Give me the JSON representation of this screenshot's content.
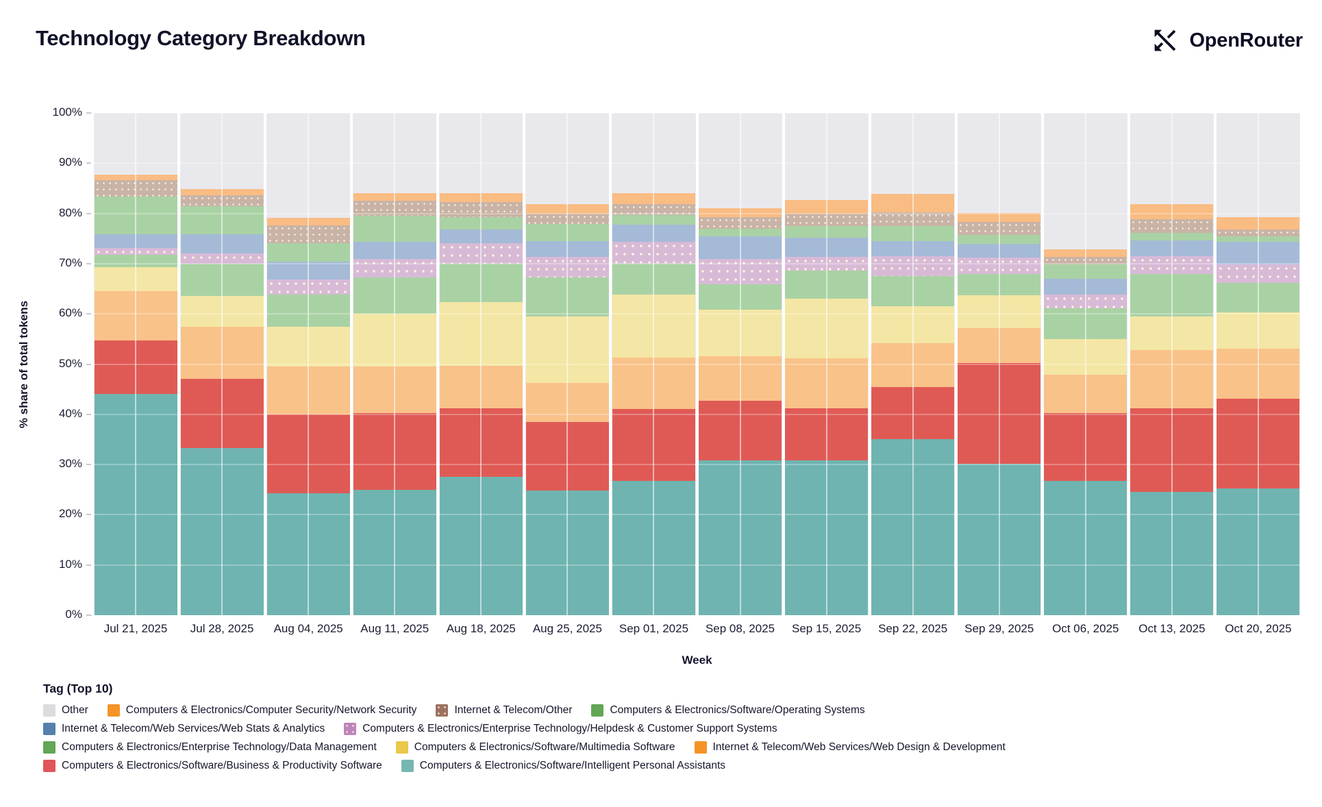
{
  "header": {
    "title": "Technology Category Breakdown",
    "logo_text": "OpenRouter"
  },
  "chart_data": {
    "type": "bar",
    "stacked": true,
    "title": "Technology Category Breakdown",
    "xlabel": "Week",
    "ylabel": "% share of total tokens",
    "ylim": [
      0,
      100
    ],
    "grid": true,
    "y_ticks": [
      "0%",
      "10%",
      "20%",
      "30%",
      "40%",
      "50%",
      "60%",
      "70%",
      "80%",
      "90%",
      "100%"
    ],
    "categories": [
      "Jul 21, 2025",
      "Jul 28, 2025",
      "Aug 04, 2025",
      "Aug 11, 2025",
      "Aug 18, 2025",
      "Aug 25, 2025",
      "Sep 01, 2025",
      "Sep 08, 2025",
      "Sep 15, 2025",
      "Sep 22, 2025",
      "Sep 29, 2025",
      "Oct 06, 2025",
      "Oct 13, 2025",
      "Oct 20, 2025"
    ],
    "series": [
      {
        "name": "Computers & Electronics/Software/Intelligent Personal Assistants",
        "legend_color": "#76b7b2",
        "bar_color": "#6fb4b1",
        "pattern": false,
        "values": [
          44.0,
          33.3,
          24.3,
          25.0,
          27.6,
          24.8,
          26.8,
          30.8,
          30.8,
          35.0,
          30.2,
          26.8,
          24.6,
          25.2
        ]
      },
      {
        "name": "Computers & Electronics/Software/Business & Productivity Software",
        "legend_color": "#e0565b",
        "bar_color": "#e05a55",
        "pattern": false,
        "values": [
          10.7,
          13.8,
          15.7,
          15.2,
          13.6,
          13.7,
          14.3,
          11.9,
          10.4,
          10.4,
          20.0,
          13.4,
          16.6,
          17.9
        ]
      },
      {
        "name": "Internet & Telecom/Web Services/Web Design & Development",
        "legend_color": "#f59327",
        "bar_color": "#f9c289",
        "pattern": false,
        "values": [
          9.8,
          10.4,
          9.5,
          9.3,
          8.5,
          7.8,
          10.2,
          8.9,
          9.9,
          8.7,
          6.9,
          7.7,
          11.6,
          10.0
        ]
      },
      {
        "name": "Computers & Electronics/Software/Multimedia Software",
        "legend_color": "#eac84a",
        "bar_color": "#f4e6a4",
        "pattern": false,
        "values": [
          4.8,
          6.1,
          8.0,
          10.5,
          12.6,
          13.2,
          12.6,
          9.3,
          11.9,
          7.5,
          6.6,
          7.1,
          6.7,
          7.2
        ]
      },
      {
        "name": "Computers & Electronics/Enterprise Technology/Data Management",
        "legend_color": "#62a656",
        "bar_color": "#a9d2a4",
        "pattern": false,
        "values": [
          2.5,
          6.4,
          6.3,
          7.3,
          7.7,
          7.8,
          6.1,
          5.0,
          5.6,
          6.0,
          4.3,
          6.1,
          8.5,
          5.9
        ]
      },
      {
        "name": "Computers & Electronics/Enterprise Technology/Helpdesk & Customer Support Systems",
        "legend_color": "#bd85ba",
        "bar_color": "#d8bad7",
        "pattern": true,
        "values": [
          1.4,
          2.0,
          3.0,
          3.6,
          4.1,
          4.0,
          4.3,
          5.0,
          2.8,
          3.9,
          3.2,
          2.7,
          3.5,
          3.6
        ]
      },
      {
        "name": "Internet & Telecom/Web Services/Web Stats & Analytics",
        "legend_color": "#5580ad",
        "bar_color": "#a4bad7",
        "pattern": false,
        "values": [
          2.7,
          3.9,
          3.6,
          3.4,
          2.7,
          3.2,
          3.5,
          4.5,
          3.8,
          3.0,
          2.7,
          3.2,
          3.1,
          4.5
        ]
      },
      {
        "name": "Computers & Electronics/Software/Operating Systems",
        "legend_color": "#62a656",
        "bar_color": "#a9d2a4",
        "pattern": false,
        "values": [
          7.5,
          5.6,
          3.7,
          5.2,
          2.5,
          3.4,
          1.9,
          1.6,
          2.3,
          3.0,
          1.8,
          2.8,
          1.5,
          1.1
        ]
      },
      {
        "name": "Internet & Telecom/Other",
        "legend_color": "#9d7262",
        "bar_color": "#c9b3a6",
        "pattern": true,
        "values": [
          3.2,
          2.2,
          3.6,
          3.0,
          3.0,
          2.1,
          2.2,
          2.3,
          2.5,
          2.7,
          2.6,
          1.6,
          2.8,
          1.4
        ]
      },
      {
        "name": "Computers & Electronics/Computer Security/Network Security",
        "legend_color": "#f59327",
        "bar_color": "#f9bc83",
        "pattern": false,
        "values": [
          1.2,
          1.1,
          1.5,
          1.6,
          1.8,
          1.8,
          2.2,
          1.8,
          2.7,
          3.7,
          1.8,
          1.5,
          3.0,
          2.5
        ]
      },
      {
        "name": "Other",
        "legend_color": "#dcdcdf",
        "bar_color": "#e9e9ed",
        "pattern": false,
        "values": [
          12.2,
          15.2,
          20.8,
          15.9,
          15.9,
          18.2,
          15.9,
          18.9,
          17.3,
          16.1,
          19.9,
          27.1,
          18.1,
          20.7
        ]
      }
    ],
    "legend": {
      "title": "Tag (Top 10)",
      "position": "bottom-left",
      "rows": [
        [
          10,
          9,
          8,
          7
        ],
        [
          6,
          5
        ],
        [
          4,
          3,
          2
        ],
        [
          1,
          0
        ]
      ]
    }
  }
}
